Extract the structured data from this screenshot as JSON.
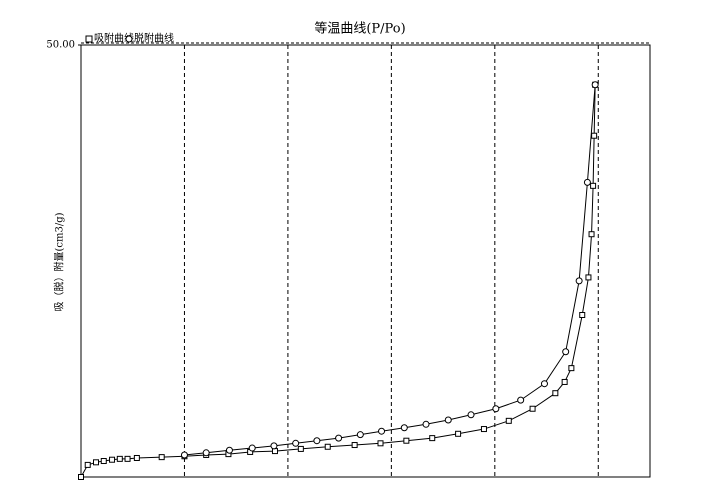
{
  "chart_data": {
    "type": "scatter-line",
    "title": "等温曲线(P/Po)",
    "y_label": "吸（脱）附量(cm3/g)",
    "xlim": [
      0,
      1.1
    ],
    "xgrid": [
      0.2,
      0.4,
      0.6,
      0.8,
      1.0
    ],
    "ylim": [
      0,
      50
    ],
    "yticks": [
      {
        "value": 50,
        "label": "50.00"
      }
    ],
    "series": [
      {
        "name": "吸附曲线",
        "marker": "square",
        "color": "#000000",
        "x": [
          0,
          0.013,
          0.029,
          0.044,
          0.06,
          0.075,
          0.09,
          0.108,
          0.156,
          0.2,
          0.242,
          0.285,
          0.327,
          0.375,
          0.425,
          0.477,
          0.529,
          0.579,
          0.629,
          0.679,
          0.729,
          0.779,
          0.827,
          0.873,
          0.917,
          0.935,
          0.948,
          0.969,
          0.981,
          0.987,
          0.99,
          0.992,
          0.994
        ],
        "values": [
          0,
          1.4,
          1.7,
          1.85,
          2.0,
          2.1,
          2.1,
          2.2,
          2.3,
          2.4,
          2.55,
          2.65,
          2.9,
          3.0,
          3.25,
          3.5,
          3.7,
          3.9,
          4.2,
          4.5,
          5.0,
          5.55,
          6.5,
          7.9,
          9.7,
          11.0,
          12.6,
          18.75,
          23.1,
          28.1,
          33.7,
          39.5,
          45.4
        ]
      },
      {
        "name": "脱附曲线",
        "marker": "circle",
        "color": "#000000",
        "x": [
          0.994,
          0.979,
          0.963,
          0.937,
          0.896,
          0.85,
          0.802,
          0.754,
          0.71,
          0.667,
          0.625,
          0.581,
          0.54,
          0.498,
          0.456,
          0.415,
          0.373,
          0.331,
          0.287,
          0.242,
          0.2
        ],
        "values": [
          45.4,
          34.1,
          22.7,
          14.5,
          10.8,
          8.9,
          7.9,
          7.2,
          6.6,
          6.1,
          5.7,
          5.3,
          4.9,
          4.5,
          4.2,
          3.9,
          3.6,
          3.35,
          3.1,
          2.8,
          2.55
        ]
      }
    ]
  }
}
